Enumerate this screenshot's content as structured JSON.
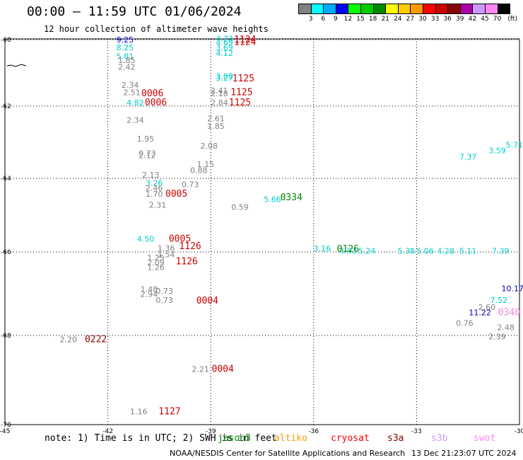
{
  "header": {
    "title": "00:00 – 11:59 UTC 01/06/2024",
    "subtitle": "12 hour collection of altimeter wave heights"
  },
  "legend": {
    "unit": "(ft)",
    "bins": [
      {
        "label": "3",
        "color": "#808080"
      },
      {
        "label": "6",
        "color": "#00ffff"
      },
      {
        "label": "9",
        "color": "#00aaff"
      },
      {
        "label": "12",
        "color": "#0000ff"
      },
      {
        "label": "15",
        "color": "#00ff00"
      },
      {
        "label": "18",
        "color": "#00cc00"
      },
      {
        "label": "21",
        "color": "#008800"
      },
      {
        "label": "24",
        "color": "#ffff00"
      },
      {
        "label": "27",
        "color": "#ffcc00"
      },
      {
        "label": "30",
        "color": "#ff9900"
      },
      {
        "label": "33",
        "color": "#ff0000"
      },
      {
        "label": "36",
        "color": "#cc0000"
      },
      {
        "label": "39",
        "color": "#880000"
      },
      {
        "label": "42",
        "color": "#aa00aa"
      },
      {
        "label": "45",
        "color": "#cc99ff"
      },
      {
        "label": "70",
        "color": "#ff88ee"
      },
      {
        "label": "",
        "color": "#000000"
      }
    ]
  },
  "map": {
    "lat_ticks": [
      "-60",
      "-62",
      "-64",
      "-66",
      "-68",
      "-70"
    ],
    "lon_ticks": [
      "-45",
      "-42",
      "-39",
      "-36",
      "-33",
      "-30"
    ],
    "wave_heights": [
      {
        "text": "9.25",
        "lon": -41.5,
        "lat": -60.08,
        "color": "#0000ff"
      },
      {
        "text": "8.25",
        "lon": -41.5,
        "lat": -60.32,
        "color": "#00cccc"
      },
      {
        "text": "5.81",
        "lon": -41.5,
        "lat": -60.58,
        "color": "#00cccc"
      },
      {
        "text": "1.85",
        "lon": -41.45,
        "lat": -60.7,
        "color": "#808080"
      },
      {
        "text": "2.42",
        "lon": -41.45,
        "lat": -60.9,
        "color": "#808080"
      },
      {
        "text": "2.34",
        "lon": -41.35,
        "lat": -61.45,
        "color": "#808080"
      },
      {
        "text": "2.51",
        "lon": -41.3,
        "lat": -61.67,
        "color": "#808080"
      },
      {
        "text": "4.82",
        "lon": -41.2,
        "lat": -61.98,
        "color": "#00cccc"
      },
      {
        "text": "2.34",
        "lon": -41.2,
        "lat": -62.46,
        "color": "#808080"
      },
      {
        "text": "1.95",
        "lon": -40.9,
        "lat": -62.98,
        "color": "#808080"
      },
      {
        "text": "0.73",
        "lon": -40.85,
        "lat": -63.38,
        "color": "#808080"
      },
      {
        "text": "2.12",
        "lon": -40.85,
        "lat": -63.44,
        "color": "#808080"
      },
      {
        "text": "2.13",
        "lon": -40.75,
        "lat": -63.98,
        "color": "#808080"
      },
      {
        "text": "3.26",
        "lon": -40.65,
        "lat": -64.2,
        "color": "#00cccc"
      },
      {
        "text": "2.46",
        "lon": -40.65,
        "lat": -64.34,
        "color": "#808080"
      },
      {
        "text": "1.70",
        "lon": -40.65,
        "lat": -64.5,
        "color": "#808080"
      },
      {
        "text": "2.31",
        "lon": -40.55,
        "lat": -64.8,
        "color": "#808080"
      },
      {
        "text": "4.50",
        "lon": -40.9,
        "lat": -65.72,
        "color": "#00cccc"
      },
      {
        "text": "1.36",
        "lon": -40.3,
        "lat": -65.97,
        "color": "#808080"
      },
      {
        "text": "1.54",
        "lon": -40.3,
        "lat": -66.13,
        "color": "#808080"
      },
      {
        "text": "1.25",
        "lon": -40.6,
        "lat": -66.2,
        "color": "#808080"
      },
      {
        "text": "2.09",
        "lon": -40.6,
        "lat": -66.32,
        "color": "#808080"
      },
      {
        "text": "1.26",
        "lon": -40.6,
        "lat": -66.43,
        "color": "#808080"
      },
      {
        "text": "1.48",
        "lon": -40.8,
        "lat": -66.96,
        "color": "#808080"
      },
      {
        "text": "2.94",
        "lon": -40.8,
        "lat": -67.08,
        "color": "#808080"
      },
      {
        "text": "0.73",
        "lon": -40.35,
        "lat": -67.0,
        "color": "#808080"
      },
      {
        "text": "0.73",
        "lon": -40.35,
        "lat": -67.22,
        "color": "#808080"
      },
      {
        "text": "2.20",
        "lon": -43.15,
        "lat": -68.15,
        "color": "#808080"
      },
      {
        "text": "2.21",
        "lon": -39.3,
        "lat": -68.82,
        "color": "#808080"
      },
      {
        "text": "1.16",
        "lon": -41.1,
        "lat": -69.77,
        "color": "#808080"
      },
      {
        "text": "4.73",
        "lon": -38.6,
        "lat": -60.05,
        "color": "#00cccc"
      },
      {
        "text": "4.69",
        "lon": -38.6,
        "lat": -60.16,
        "color": "#00cccc"
      },
      {
        "text": "3.69",
        "lon": -38.6,
        "lat": -60.32,
        "color": "#00cccc"
      },
      {
        "text": "4.12",
        "lon": -38.6,
        "lat": -60.49,
        "color": "#00cccc"
      },
      {
        "text": "3.00",
        "lon": -38.6,
        "lat": -61.18,
        "color": "#00cccc"
      },
      {
        "text": "3.27",
        "lon": -38.6,
        "lat": -61.23,
        "color": "#00cccc"
      },
      {
        "text": "2.41",
        "lon": -38.75,
        "lat": -61.62,
        "color": "#808080"
      },
      {
        "text": "2.18",
        "lon": -38.75,
        "lat": -61.7,
        "color": "#808080"
      },
      {
        "text": "2.84",
        "lon": -38.75,
        "lat": -61.98,
        "color": "#808080"
      },
      {
        "text": "2.61",
        "lon": -38.85,
        "lat": -62.42,
        "color": "#808080"
      },
      {
        "text": "1.85",
        "lon": -38.85,
        "lat": -62.63,
        "color": "#808080"
      },
      {
        "text": "2.08",
        "lon": -39.05,
        "lat": -63.18,
        "color": "#808080"
      },
      {
        "text": "1.15",
        "lon": -39.15,
        "lat": -63.69,
        "color": "#808080"
      },
      {
        "text": "0.88",
        "lon": -39.35,
        "lat": -63.85,
        "color": "#808080"
      },
      {
        "text": "0.73",
        "lon": -39.6,
        "lat": -64.24,
        "color": "#808080"
      },
      {
        "text": "0.59",
        "lon": -38.15,
        "lat": -64.86,
        "color": "#808080"
      },
      {
        "text": "5.66",
        "lon": -37.2,
        "lat": -64.64,
        "color": "#00cccc"
      },
      {
        "text": "3.16",
        "lon": -35.75,
        "lat": -65.98,
        "color": "#00cccc"
      },
      {
        "text": "4.93",
        "lon": -35.0,
        "lat": -66.04,
        "color": "#00cccc"
      },
      {
        "text": "5.24",
        "lon": -34.45,
        "lat": -66.04,
        "color": "#00cccc"
      },
      {
        "text": "5.38",
        "lon": -33.3,
        "lat": -66.04,
        "color": "#00cccc"
      },
      {
        "text": "5.06",
        "lon": -32.75,
        "lat": -66.04,
        "color": "#00cccc"
      },
      {
        "text": "4.28",
        "lon": -32.15,
        "lat": -66.04,
        "color": "#00cccc"
      },
      {
        "text": "5.11",
        "lon": -31.5,
        "lat": -66.04,
        "color": "#00cccc"
      },
      {
        "text": "7.39",
        "lon": -30.55,
        "lat": -66.04,
        "color": "#00cccc"
      },
      {
        "text": "7.37",
        "lon": -31.5,
        "lat": -63.48,
        "color": "#00cccc"
      },
      {
        "text": "3.59",
        "lon": -30.65,
        "lat": -63.3,
        "color": "#00cccc"
      },
      {
        "text": "5.71",
        "lon": -30.15,
        "lat": -63.15,
        "color": "#00cccc"
      },
      {
        "text": "10.17",
        "lon": -30.2,
        "lat": -66.94,
        "color": "#0000aa"
      },
      {
        "text": "7.52",
        "lon": -30.6,
        "lat": -67.22,
        "color": "#00cccc"
      },
      {
        "text": "2.60",
        "lon": -30.95,
        "lat": -67.39,
        "color": "#808080"
      },
      {
        "text": "11.22",
        "lon": -31.15,
        "lat": -67.52,
        "color": "#0000aa"
      },
      {
        "text": "0.76",
        "lon": -31.6,
        "lat": -67.77,
        "color": "#808080"
      },
      {
        "text": "2.48",
        "lon": -30.4,
        "lat": -67.87,
        "color": "#808080"
      },
      {
        "text": "2.39",
        "lon": -30.65,
        "lat": -68.09,
        "color": "#808080"
      }
    ],
    "time_labels": [
      {
        "text": "1124",
        "lon": -38.0,
        "lat": -60.08,
        "color": "#cc0000"
      },
      {
        "text": "1124",
        "lon": -38.0,
        "lat": -60.16,
        "color": "#cc0000"
      },
      {
        "text": "1125",
        "lon": -38.05,
        "lat": -61.25,
        "color": "#cc0000"
      },
      {
        "text": "1125",
        "lon": -38.1,
        "lat": -61.67,
        "color": "#cc0000"
      },
      {
        "text": "1125",
        "lon": -38.15,
        "lat": -61.98,
        "color": "#cc0000"
      },
      {
        "text": "0006",
        "lon": -40.7,
        "lat": -61.7,
        "color": "#cc0000"
      },
      {
        "text": "0006",
        "lon": -40.6,
        "lat": -61.98,
        "color": "#cc0000"
      },
      {
        "text": "0005",
        "lon": -40.0,
        "lat": -64.5,
        "color": "#cc0000"
      },
      {
        "text": "0334",
        "lon": -36.65,
        "lat": -64.6,
        "color": "#008800"
      },
      {
        "text": "0005",
        "lon": -39.9,
        "lat": -65.72,
        "color": "#cc0000"
      },
      {
        "text": "1126",
        "lon": -39.6,
        "lat": -65.92,
        "color": "#cc0000"
      },
      {
        "text": "1126",
        "lon": -39.7,
        "lat": -66.3,
        "color": "#cc0000"
      },
      {
        "text": "0126",
        "lon": -35.0,
        "lat": -66.0,
        "color": "#008800"
      },
      {
        "text": "0004",
        "lon": -39.1,
        "lat": -67.24,
        "color": "#cc0000"
      },
      {
        "text": "0222",
        "lon": -42.35,
        "lat": -68.15,
        "color": "#880000"
      },
      {
        "text": "0004",
        "lon": -38.65,
        "lat": -68.82,
        "color": "#cc0000"
      },
      {
        "text": "1127",
        "lon": -40.2,
        "lat": -69.77,
        "color": "#cc0000"
      },
      {
        "text": "0340",
        "lon": -30.3,
        "lat": -67.52,
        "color": "#ee88dd"
      }
    ]
  },
  "footer": {
    "note": "note: 1) Time is in UTC; 2) SWH is in feet",
    "satellites": [
      {
        "name": "jason3",
        "color": "#008800"
      },
      {
        "name": "altiko",
        "color": "#ff9900"
      },
      {
        "name": "cryosat",
        "color": "#ff0000"
      },
      {
        "name": "s3a",
        "color": "#880000"
      },
      {
        "name": "s3b",
        "color": "#cc99ff"
      },
      {
        "name": "swot",
        "color": "#ff88ee"
      }
    ],
    "credit": "NOAA/NESDIS Center for Satellite Applications and Research",
    "generated": "13 Dec 21:23:07 UTC 2024"
  }
}
